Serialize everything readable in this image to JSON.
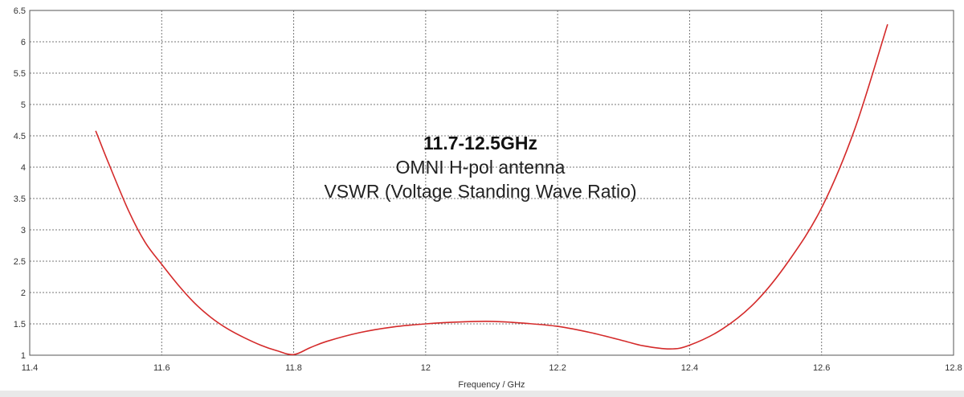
{
  "chart_data": {
    "type": "line",
    "title": "",
    "xlabel": "Frequency / GHz",
    "ylabel": "",
    "xlim": [
      11.4,
      12.8
    ],
    "ylim": [
      1,
      6.5
    ],
    "x_ticks": [
      "11.4",
      "11.6",
      "11.8",
      "12",
      "12.2",
      "12.4",
      "12.6",
      "12.8"
    ],
    "y_ticks": [
      "1",
      "1.5",
      "2",
      "2.5",
      "3",
      "3.5",
      "4",
      "4.5",
      "5",
      "5.5",
      "6",
      "6.5"
    ],
    "grid": true,
    "legend": "none",
    "annotations": [
      "11.7-12.5GHz",
      "OMNI H-pol antenna",
      "VSWR (Voltage Standing Wave Ratio)"
    ],
    "series": [
      {
        "color": "#d42a2a",
        "x": [
          11.5,
          11.52,
          11.55,
          11.575,
          11.6,
          11.625,
          11.65,
          11.675,
          11.7,
          11.725,
          11.75,
          11.775,
          11.8,
          11.825,
          11.85,
          11.9,
          11.95,
          12.0,
          12.05,
          12.1,
          12.15,
          12.2,
          12.25,
          12.3,
          12.33,
          12.37,
          12.4,
          12.45,
          12.5,
          12.55,
          12.6,
          12.65,
          12.7
        ],
        "values": [
          4.58,
          4.05,
          3.3,
          2.8,
          2.45,
          2.12,
          1.83,
          1.6,
          1.42,
          1.28,
          1.16,
          1.07,
          1.01,
          1.12,
          1.22,
          1.36,
          1.45,
          1.5,
          1.53,
          1.54,
          1.51,
          1.46,
          1.36,
          1.23,
          1.15,
          1.1,
          1.16,
          1.42,
          1.85,
          2.5,
          3.35,
          4.6,
          6.28
        ]
      }
    ]
  }
}
